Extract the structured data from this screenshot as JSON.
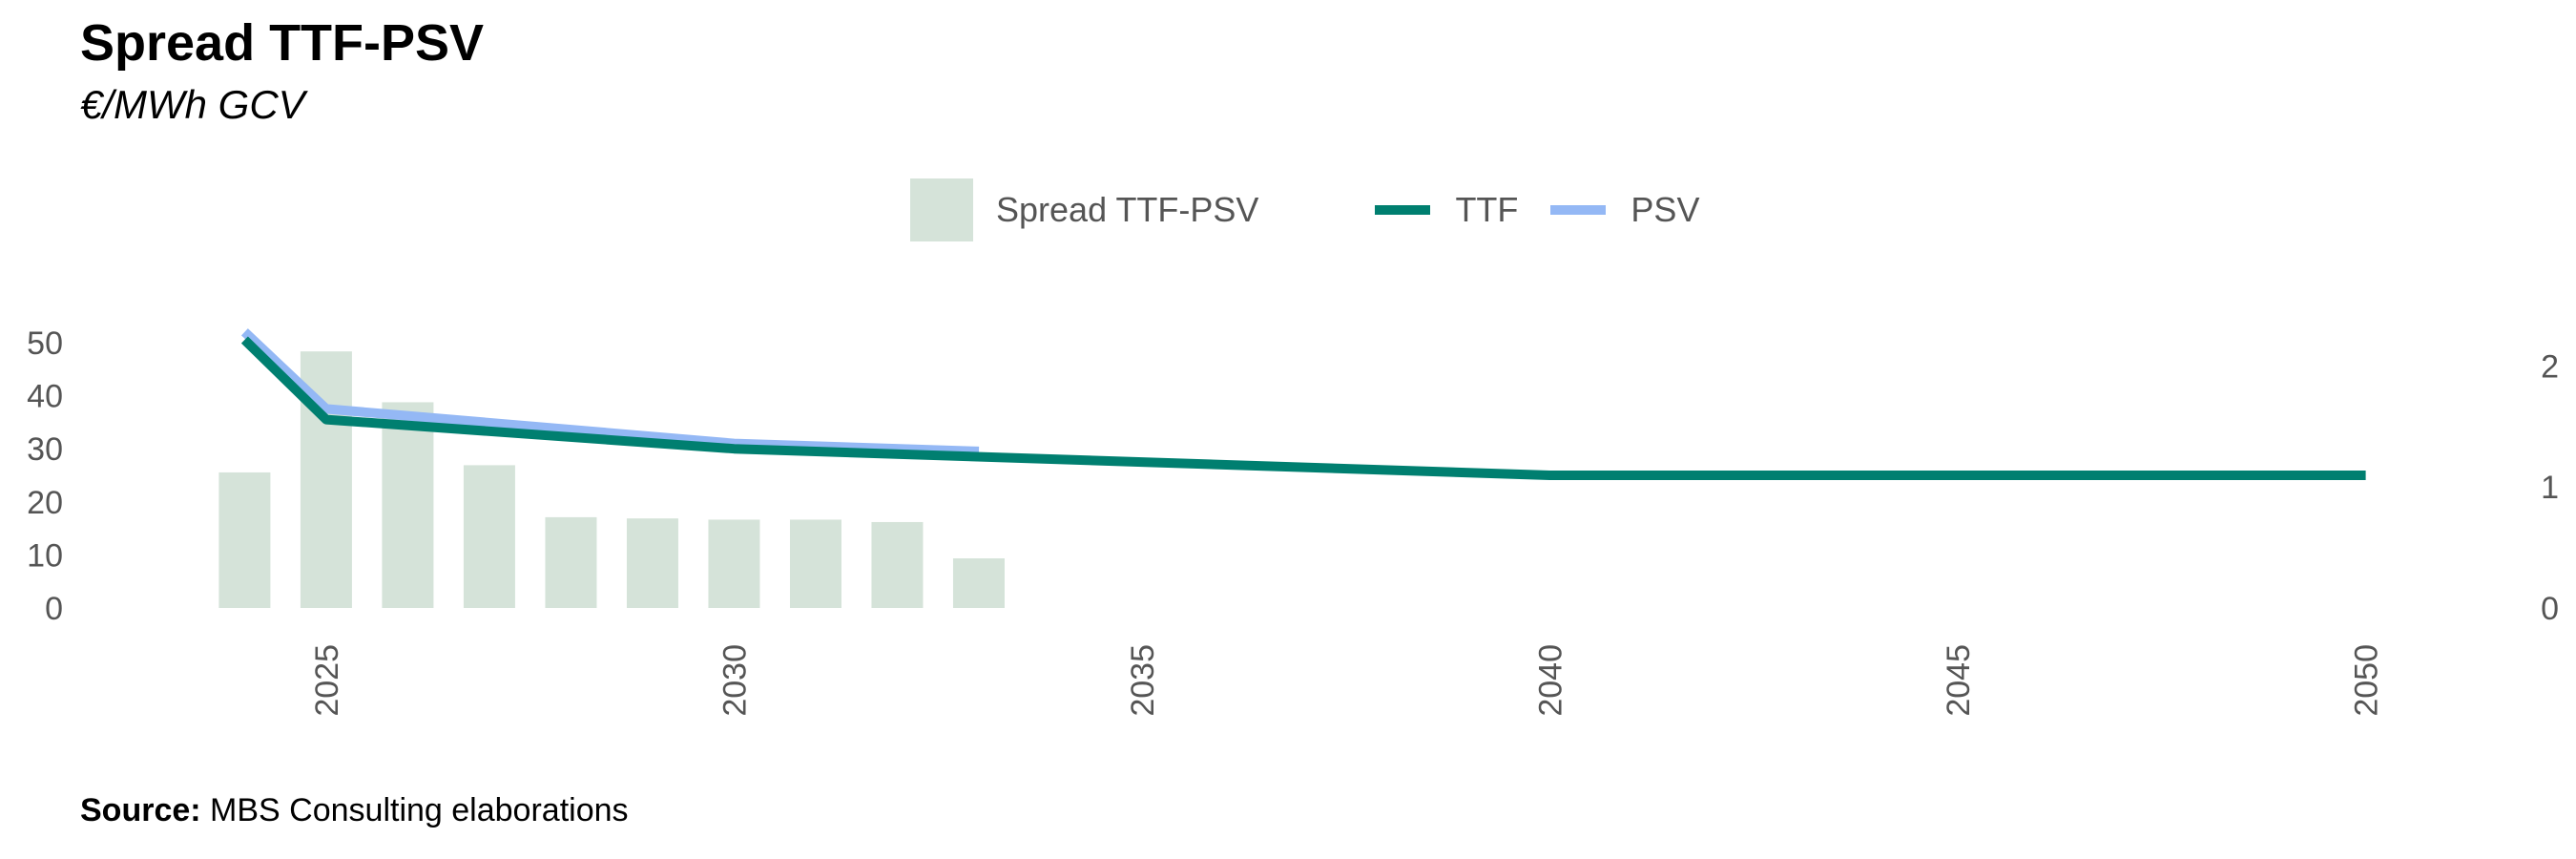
{
  "title": "Spread TTF-PSV",
  "subtitle": "€/MWh GCV",
  "source_label": "Source:",
  "source_text": "MBS Consulting elaborations",
  "colors": {
    "spread": "#d5e3d9",
    "ttf": "#007f70",
    "psv": "#94b8f5"
  },
  "chart_data": {
    "type": "bar",
    "legend_position": "top-center",
    "grid": false,
    "series": [
      {
        "name": "Spread TTF-PSV",
        "type": "bar",
        "axis": "right",
        "x": [
          2024,
          2025,
          2026,
          2027,
          2028,
          2029,
          2030,
          2031,
          2032,
          2033
        ],
        "values": [
          1.12,
          2.12,
          1.7,
          1.18,
          0.75,
          0.74,
          0.73,
          0.73,
          0.71,
          0.41
        ]
      },
      {
        "name": "TTF",
        "type": "line",
        "axis": "left",
        "x": [
          2024,
          2025,
          2030,
          2035,
          2040,
          2045,
          2050
        ],
        "values": [
          50.5,
          35.5,
          30.0,
          27.5,
          25.0,
          25.0,
          25.0
        ]
      },
      {
        "name": "PSV",
        "type": "line",
        "axis": "left",
        "x": [
          2024,
          2025,
          2030,
          2033
        ],
        "values": [
          52.0,
          37.5,
          31.0,
          29.5
        ]
      }
    ],
    "x_ticks": [
      "2025",
      "2030",
      "2035",
      "2040",
      "2045",
      "2050"
    ],
    "y_left_ticks": [
      "0",
      "10",
      "20",
      "30",
      "40",
      "50"
    ],
    "y_right_ticks": [
      "0",
      "1",
      "2"
    ],
    "xlim": [
      2023.2,
      2050.8
    ],
    "ylim_left": [
      0,
      57
    ],
    "ylim_right": [
      0,
      2.5
    ]
  }
}
